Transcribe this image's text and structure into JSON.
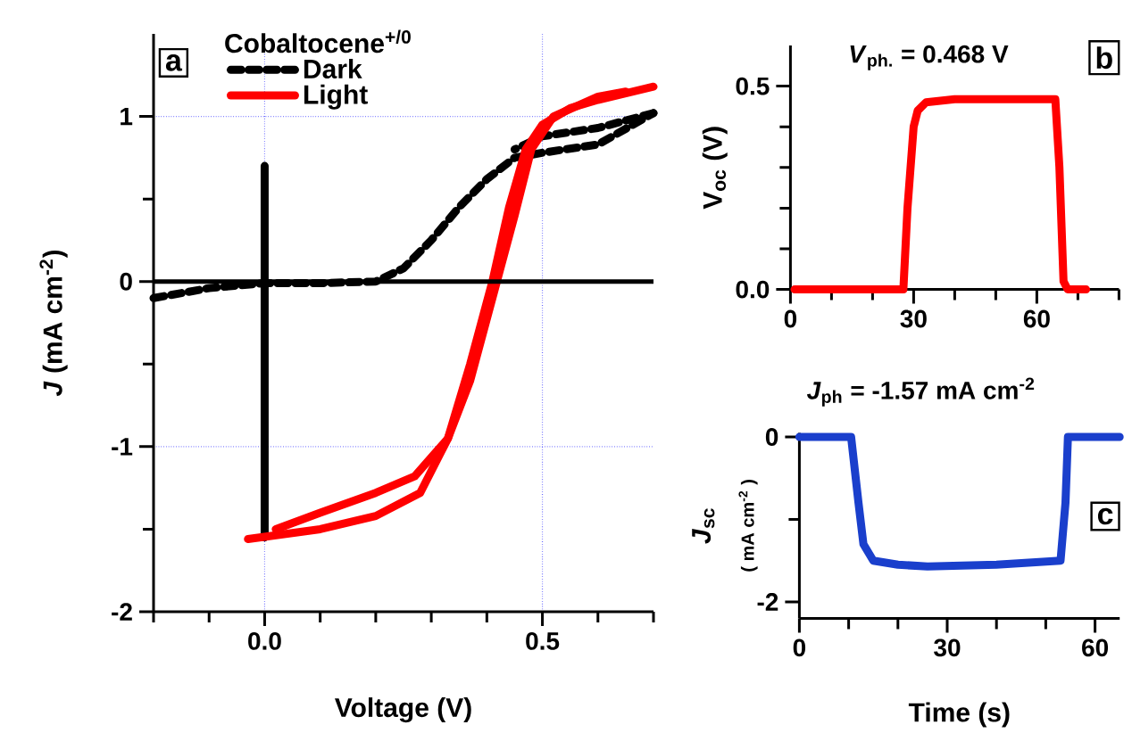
{
  "chart_data": [
    {
      "type": "line",
      "xlabel": "Voltage (V)",
      "ylabel": "*J* (mA cm$^{-2}$)",
      "legend_title": "Cobaltocene$^{+/0}$",
      "annotations": [
        "a"
      ],
      "xlim": [
        -0.2,
        0.7
      ],
      "ylim": [
        -2,
        1.5
      ],
      "xticks": [
        {
          "value": -0.2,
          "label": null
        },
        {
          "value": -0.1,
          "label": null
        },
        {
          "value": 0,
          "label": "0.0"
        },
        {
          "value": 0.1,
          "label": null
        },
        {
          "value": 0.2,
          "label": null
        },
        {
          "value": 0.3,
          "label": null
        },
        {
          "value": 0.4,
          "label": null
        },
        {
          "value": 0.5,
          "label": "0.5"
        },
        {
          "value": 0.6,
          "label": null
        },
        {
          "value": 0.7,
          "label": null
        }
      ],
      "yticks": [
        -2,
        {
          "value": -1.5,
          "label": null
        },
        -1,
        {
          "value": -0.5,
          "label": null
        },
        0,
        {
          "value": 0.5,
          "label": null
        },
        1
      ],
      "grid": true,
      "legend": "top left",
      "ref_lines": [
        {
          "axis": "y",
          "value": 0,
          "color": "#000000"
        }
      ],
      "series": [
        {
          "color": "#000000",
          "line_style": "solid",
          "x": [
            0,
            0
          ],
          "values": [
            -1.55,
            0.7
          ]
        },
        {
          "name": "Dark",
          "color": "#000000",
          "line_style": "dashed",
          "x": [
            -0.2,
            -0.1,
            0,
            0.1,
            0.2,
            0.25,
            0.3,
            0.35,
            0.4,
            0.45,
            0.5,
            0.6,
            0.7
          ],
          "values": [
            -0.1,
            -0.04,
            -0.01,
            -0.01,
            0.0,
            0.08,
            0.25,
            0.45,
            0.62,
            0.75,
            0.78,
            0.83,
            1.02
          ]
        },
        {
          "color": "#000000",
          "line_style": "dashed",
          "x": [
            0.7,
            0.6,
            0.5,
            0.45
          ],
          "values": [
            1.02,
            0.93,
            0.88,
            0.8
          ]
        },
        {
          "name": "Light",
          "color": "#ff0000",
          "line_style": "solid",
          "x": [
            -0.03,
            0.1,
            0.2,
            0.28,
            0.33,
            0.37,
            0.41,
            0.44,
            0.47,
            0.5,
            0.55,
            0.6,
            0.7
          ],
          "values": [
            -1.56,
            -1.5,
            -1.42,
            -1.28,
            -0.95,
            -0.5,
            0.0,
            0.45,
            0.8,
            0.95,
            1.05,
            1.1,
            1.18
          ]
        },
        {
          "color": "#ff0000",
          "line_style": "solid",
          "x": [
            0.65,
            0.6,
            0.52,
            0.48,
            0.45,
            0.41,
            0.37,
            0.33,
            0.27,
            0.2,
            0.1,
            0.02
          ],
          "values": [
            1.15,
            1.12,
            1.0,
            0.8,
            0.4,
            -0.1,
            -0.6,
            -0.95,
            -1.18,
            -1.28,
            -1.4,
            -1.5
          ]
        }
      ]
    },
    {
      "type": "line",
      "ylabel": "V$_{oc}$ (V)",
      "annotations": [
        "*V*$_{ph.}$ = 0.468 V",
        "b"
      ],
      "xlim": [
        0,
        80
      ],
      "ylim": [
        0,
        0.6
      ],
      "xticks": [
        0,
        {
          "value": 10,
          "label": null
        },
        {
          "value": 20,
          "label": null
        },
        30,
        {
          "value": 40,
          "label": null
        },
        {
          "value": 50,
          "label": null
        },
        60,
        {
          "value": 70,
          "label": null
        },
        {
          "value": 80,
          "label": null
        }
      ],
      "yticks": [
        {
          "value": 0,
          "label": "0.0"
        },
        {
          "value": 0.1,
          "label": null
        },
        {
          "value": 0.2,
          "label": null
        },
        {
          "value": 0.3,
          "label": null
        },
        {
          "value": 0.4,
          "label": null
        },
        0.5
      ],
      "series": [
        {
          "color": "#ff0000",
          "x": [
            1,
            27.5,
            28.5,
            30,
            31,
            33,
            40,
            64.5,
            65.5,
            66.5,
            67.5,
            72
          ],
          "values": [
            0,
            0,
            0.2,
            0.4,
            0.44,
            0.46,
            0.468,
            0.468,
            0.3,
            0.02,
            0,
            0
          ]
        }
      ]
    },
    {
      "type": "line",
      "xlabel": "Time (s)",
      "ylabel": "*J*$_{sc}$",
      "annotations": [
        "*J*$_{ph}$ =  -1.57 mA cm$^{-2}$",
        "c",
        "( mA cm$^{-2}$ )"
      ],
      "xlim": [
        0,
        65
      ],
      "ylim": [
        -2.2,
        0.05
      ],
      "xticks": [
        0,
        {
          "value": 10,
          "label": null
        },
        {
          "value": 20,
          "label": null
        },
        30,
        {
          "value": 40,
          "label": null
        },
        {
          "value": 50,
          "label": null
        },
        60
      ],
      "yticks": [
        -2,
        {
          "value": -1,
          "label": null
        },
        0
      ],
      "series": [
        {
          "color": "#1a3fcc",
          "x": [
            0,
            10.5,
            12,
            13,
            15,
            20,
            26,
            40,
            53,
            54,
            54.5,
            60,
            65
          ],
          "values": [
            0,
            0,
            -0.8,
            -1.3,
            -1.5,
            -1.55,
            -1.57,
            -1.55,
            -1.5,
            -0.8,
            0,
            0,
            0
          ]
        }
      ]
    }
  ]
}
